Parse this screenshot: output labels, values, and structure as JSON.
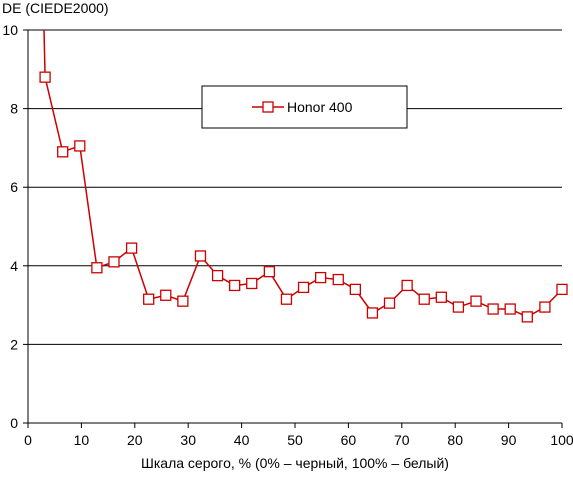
{
  "chart_data": {
    "type": "line",
    "title": "",
    "ylabel": "DE (CIEDE2000)",
    "xlabel": "Шкала серого, % (0% – черный, 100% – белый)",
    "xlim": [
      0,
      100
    ],
    "ylim": [
      0,
      10
    ],
    "x_ticks": [
      0,
      10,
      20,
      30,
      40,
      50,
      60,
      70,
      80,
      90,
      100
    ],
    "y_ticks": [
      0,
      2,
      4,
      6,
      8,
      10
    ],
    "x_tick_labels": [
      "0",
      "10",
      "20",
      "30",
      "40",
      "50",
      "60",
      "70",
      "80",
      "90",
      "100"
    ],
    "y_tick_labels": [
      "0",
      "2",
      "4",
      "6",
      "8",
      "10"
    ],
    "grid": "horizontal",
    "legend_position": "top-center",
    "series": [
      {
        "name": "Honor 400",
        "color": "#cc0000",
        "marker": "hollow-square",
        "x": [
          3.2,
          6.5,
          9.7,
          12.9,
          16.1,
          19.4,
          22.6,
          25.8,
          29.0,
          32.3,
          35.5,
          38.7,
          41.9,
          45.2,
          48.4,
          51.6,
          54.8,
          58.1,
          61.3,
          64.5,
          67.7,
          71.0,
          74.2,
          77.4,
          80.6,
          83.9,
          87.1,
          90.3,
          93.5,
          96.8,
          100.0
        ],
        "y": [
          8.8,
          6.9,
          7.05,
          3.95,
          4.1,
          4.45,
          3.15,
          3.25,
          3.1,
          4.25,
          3.75,
          3.5,
          3.55,
          3.85,
          3.15,
          3.45,
          3.7,
          3.65,
          3.4,
          2.8,
          3.05,
          3.5,
          3.15,
          3.2,
          2.95,
          3.1,
          2.9,
          2.9,
          2.7,
          2.95,
          3.4
        ],
        "lead_in": {
          "x": [
            3.0,
            3.2
          ],
          "y": [
            10.0,
            8.8
          ]
        }
      }
    ]
  }
}
